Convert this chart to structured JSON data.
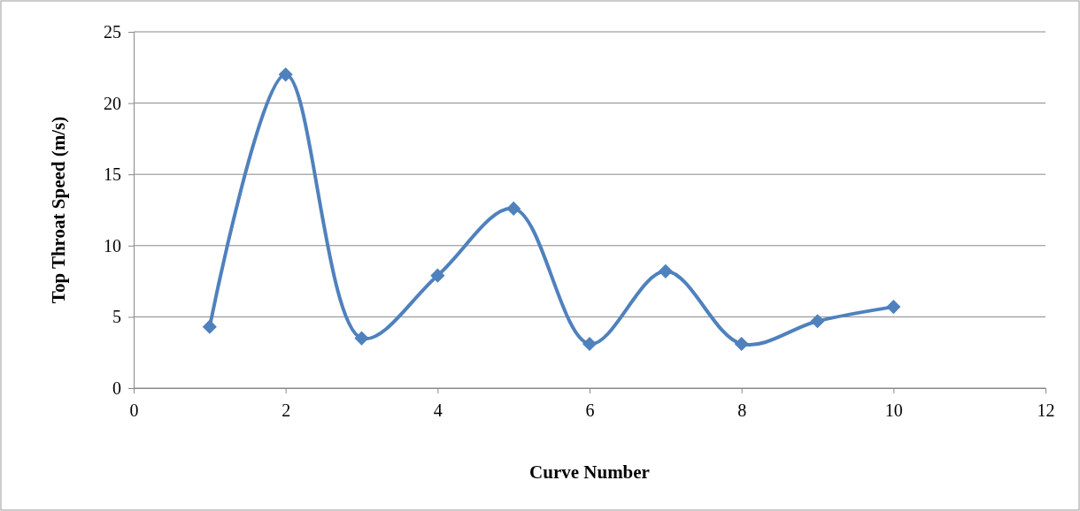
{
  "chart_data": {
    "type": "line",
    "xlabel": "Curve Number",
    "ylabel": "Top Throat Speed (m/s)",
    "x": [
      1,
      2,
      3,
      4,
      5,
      6,
      7,
      8,
      9,
      10
    ],
    "series": [
      {
        "color": "#4f81bd",
        "values": [
          4.3,
          22.0,
          3.5,
          7.9,
          12.6,
          3.1,
          8.2,
          3.1,
          4.7,
          5.7
        ]
      }
    ],
    "xlim": [
      0,
      12
    ],
    "xticks": [
      0,
      2,
      4,
      6,
      8,
      10,
      12
    ],
    "ylim": [
      0,
      25
    ],
    "yticks": [
      0,
      5,
      10,
      15,
      20,
      25
    ],
    "grid": "y",
    "marker": "diamond",
    "line_style": "solid"
  }
}
